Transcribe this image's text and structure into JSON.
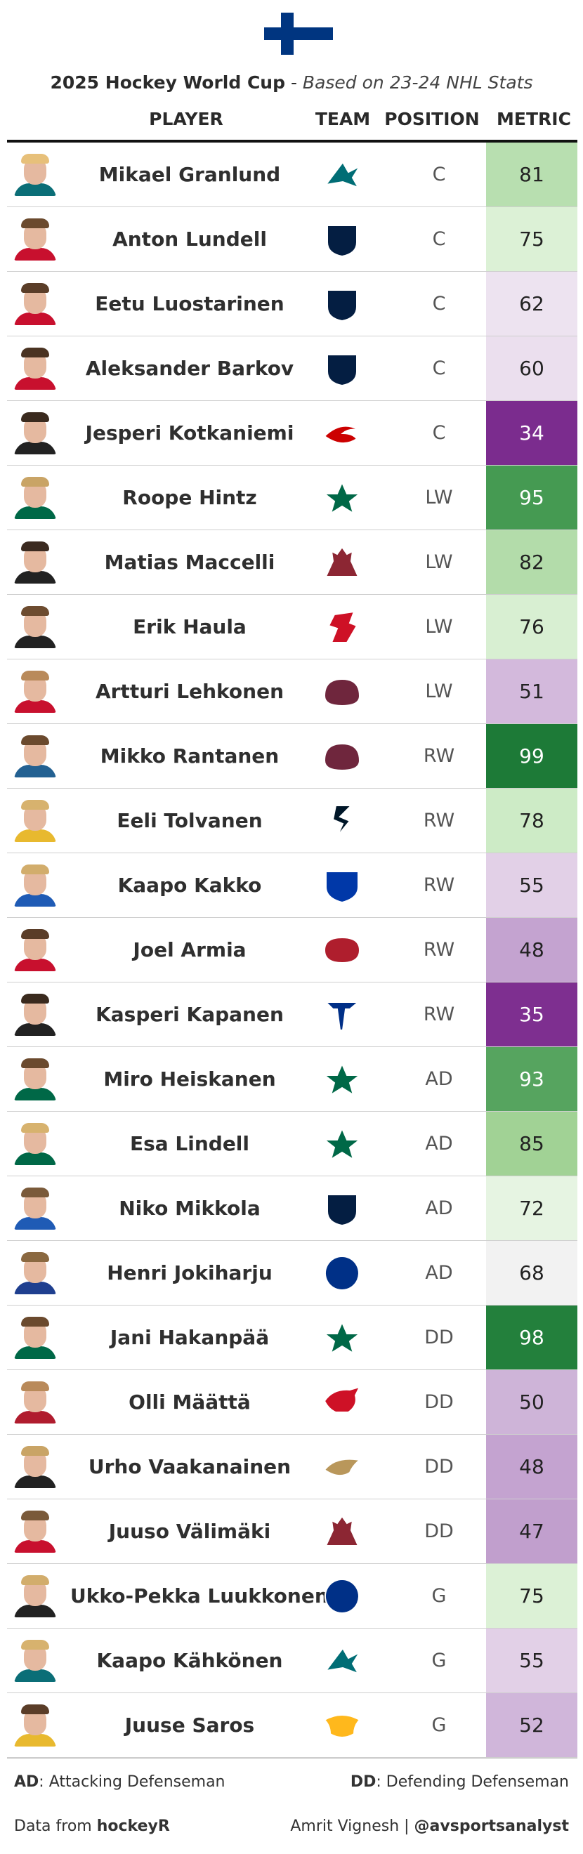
{
  "header": {
    "title_main": "2025 Hockey World Cup",
    "title_sep": " - ",
    "title_sub": "Based on 23-24 NHL Stats",
    "columns": {
      "player": "PLAYER",
      "team": "TEAM",
      "position": "POSITION",
      "metric": "METRIC"
    }
  },
  "flag": {
    "field_color": "#ffffff",
    "cross_color": "#003580"
  },
  "players": [
    {
      "name": "Mikael Granlund",
      "team_icon": "sharks-logo-icon",
      "team_color": "#006d75",
      "position": "C",
      "metric": "81",
      "metric_bg": "#b8dfb0",
      "metric_fg": "#222222",
      "jersey_color": "#0b6e77",
      "hair_color": "#e7c07a"
    },
    {
      "name": "Anton Lundell",
      "team_icon": "panthers-logo-icon",
      "team_color": "#041e42",
      "position": "C",
      "metric": "75",
      "metric_bg": "#dcf1d6",
      "metric_fg": "#222222",
      "jersey_color": "#c8102e",
      "hair_color": "#6b4a2e"
    },
    {
      "name": "Eetu Luostarinen",
      "team_icon": "panthers-logo-icon",
      "team_color": "#041e42",
      "position": "C",
      "metric": "62",
      "metric_bg": "#ede3f0",
      "metric_fg": "#222222",
      "jersey_color": "#c8102e",
      "hair_color": "#5a3d28"
    },
    {
      "name": "Aleksander Barkov",
      "team_icon": "panthers-logo-icon",
      "team_color": "#041e42",
      "position": "C",
      "metric": "60",
      "metric_bg": "#ebdfee",
      "metric_fg": "#222222",
      "jersey_color": "#c8102e",
      "hair_color": "#4a3322"
    },
    {
      "name": "Jesperi Kotkaniemi",
      "team_icon": "hurricanes-logo-icon",
      "team_color": "#cc0000",
      "position": "C",
      "metric": "34",
      "metric_bg": "#7b2c8e",
      "metric_fg": "#ffffff",
      "jersey_color": "#222222",
      "hair_color": "#3a2a1e"
    },
    {
      "name": "Roope Hintz",
      "team_icon": "stars-logo-icon",
      "team_color": "#006847",
      "position": "LW",
      "metric": "95",
      "metric_bg": "#459a52",
      "metric_fg": "#ffffff",
      "jersey_color": "#006847",
      "hair_color": "#c9a466"
    },
    {
      "name": "Matias Maccelli",
      "team_icon": "coyotes-logo-icon",
      "team_color": "#8c2633",
      "position": "LW",
      "metric": "82",
      "metric_bg": "#b3dcaa",
      "metric_fg": "#222222",
      "jersey_color": "#222222",
      "hair_color": "#3b2a20"
    },
    {
      "name": "Erik Haula",
      "team_icon": "devils-logo-icon",
      "team_color": "#ce1126",
      "position": "LW",
      "metric": "76",
      "metric_bg": "#d8efd2",
      "metric_fg": "#222222",
      "jersey_color": "#222222",
      "hair_color": "#6d4c30"
    },
    {
      "name": "Artturi Lehkonen",
      "team_icon": "avalanche-logo-icon",
      "team_color": "#6f263d",
      "position": "LW",
      "metric": "51",
      "metric_bg": "#d3b9dc",
      "metric_fg": "#222222",
      "jersey_color": "#c8102e",
      "hair_color": "#b98a5a"
    },
    {
      "name": "Mikko Rantanen",
      "team_icon": "avalanche-logo-icon",
      "team_color": "#6f263d",
      "position": "RW",
      "metric": "99",
      "metric_bg": "#1d7a37",
      "metric_fg": "#ffffff",
      "jersey_color": "#236192",
      "hair_color": "#6b4a2e"
    },
    {
      "name": "Eeli Tolvanen",
      "team_icon": "kraken-logo-icon",
      "team_color": "#001628",
      "position": "RW",
      "metric": "78",
      "metric_bg": "#cdebc6",
      "metric_fg": "#222222",
      "jersey_color": "#e8b92f",
      "hair_color": "#d7b26e"
    },
    {
      "name": "Kaapo Kakko",
      "team_icon": "rangers-logo-icon",
      "team_color": "#0038a8",
      "position": "RW",
      "metric": "55",
      "metric_bg": "#e2d0e7",
      "metric_fg": "#222222",
      "jersey_color": "#1f5bb5",
      "hair_color": "#d2ad6c"
    },
    {
      "name": "Joel Armia",
      "team_icon": "canadiens-logo-icon",
      "team_color": "#af1e2d",
      "position": "RW",
      "metric": "48",
      "metric_bg": "#c4a3d0",
      "metric_fg": "#222222",
      "jersey_color": "#c8102e",
      "hair_color": "#5a3d28"
    },
    {
      "name": "Kasperi Kapanen",
      "team_icon": "blues-logo-icon",
      "team_color": "#002f87",
      "position": "RW",
      "metric": "35",
      "metric_bg": "#7e2f90",
      "metric_fg": "#ffffff",
      "jersey_color": "#222222",
      "hair_color": "#3a2a1e"
    },
    {
      "name": "Miro Heiskanen",
      "team_icon": "stars-logo-icon",
      "team_color": "#006847",
      "position": "AD",
      "metric": "93",
      "metric_bg": "#56a45f",
      "metric_fg": "#ffffff",
      "jersey_color": "#006847",
      "hair_color": "#6b4a2e"
    },
    {
      "name": "Esa Lindell",
      "team_icon": "stars-logo-icon",
      "team_color": "#006847",
      "position": "AD",
      "metric": "85",
      "metric_bg": "#a1d295",
      "metric_fg": "#222222",
      "jersey_color": "#006847",
      "hair_color": "#d7b26e"
    },
    {
      "name": "Niko Mikkola",
      "team_icon": "panthers-logo-icon",
      "team_color": "#041e42",
      "position": "AD",
      "metric": "72",
      "metric_bg": "#e6f4e2",
      "metric_fg": "#222222",
      "jersey_color": "#1f5bb5",
      "hair_color": "#7a5a3a"
    },
    {
      "name": "Henri Jokiharju",
      "team_icon": "sabres-logo-icon",
      "team_color": "#003087",
      "position": "AD",
      "metric": "68",
      "metric_bg": "#f2f2f2",
      "metric_fg": "#222222",
      "jersey_color": "#1f3f8f",
      "hair_color": "#8a6840"
    },
    {
      "name": "Jani Hakanpää",
      "team_icon": "stars-logo-icon",
      "team_color": "#006847",
      "position": "DD",
      "metric": "98",
      "metric_bg": "#23803c",
      "metric_fg": "#ffffff",
      "jersey_color": "#006847",
      "hair_color": "#6b4a2e"
    },
    {
      "name": "Olli Määttä",
      "team_icon": "red-wings-logo-icon",
      "team_color": "#ce1126",
      "position": "DD",
      "metric": "50",
      "metric_bg": "#ceb4d8",
      "metric_fg": "#222222",
      "jersey_color": "#b01c2e",
      "hair_color": "#b98a5a"
    },
    {
      "name": "Urho Vaakanainen",
      "team_icon": "ducks-logo-icon",
      "team_color": "#b9975b",
      "position": "DD",
      "metric": "48",
      "metric_bg": "#c4a3d0",
      "metric_fg": "#222222",
      "jersey_color": "#222222",
      "hair_color": "#c9a466"
    },
    {
      "name": "Juuso Välimäki",
      "team_icon": "coyotes-logo-icon",
      "team_color": "#8c2633",
      "position": "DD",
      "metric": "47",
      "metric_bg": "#c19fcd",
      "metric_fg": "#222222",
      "jersey_color": "#c8102e",
      "hair_color": "#7a5a3a"
    },
    {
      "name": "Ukko-Pekka Luukkonen",
      "team_icon": "sabres-logo-icon",
      "team_color": "#003087",
      "position": "G",
      "metric": "75",
      "metric_bg": "#dcf1d6",
      "metric_fg": "#222222",
      "jersey_color": "#222222",
      "hair_color": "#d2ad6c"
    },
    {
      "name": "Kaapo Kähkönen",
      "team_icon": "sharks-logo-icon",
      "team_color": "#006d75",
      "position": "G",
      "metric": "55",
      "metric_bg": "#e2d0e7",
      "metric_fg": "#222222",
      "jersey_color": "#0b6e77",
      "hair_color": "#d7b26e"
    },
    {
      "name": "Juuse Saros",
      "team_icon": "predators-logo-icon",
      "team_color": "#ffb81c",
      "position": "G",
      "metric": "52",
      "metric_bg": "#d0b6da",
      "metric_fg": "#222222",
      "jersey_color": "#e8b92f",
      "hair_color": "#5a3d28"
    }
  ],
  "footer": {
    "ad_key": "AD",
    "ad_text": ": Attacking Defenseman",
    "dd_key": "DD",
    "dd_text": ": Defending Defenseman",
    "source_prefix": "Data from ",
    "source_name": "hockeyR",
    "credit_name": "Amrit Vignesh | ",
    "credit_handle": "@avsportsanalyst"
  }
}
